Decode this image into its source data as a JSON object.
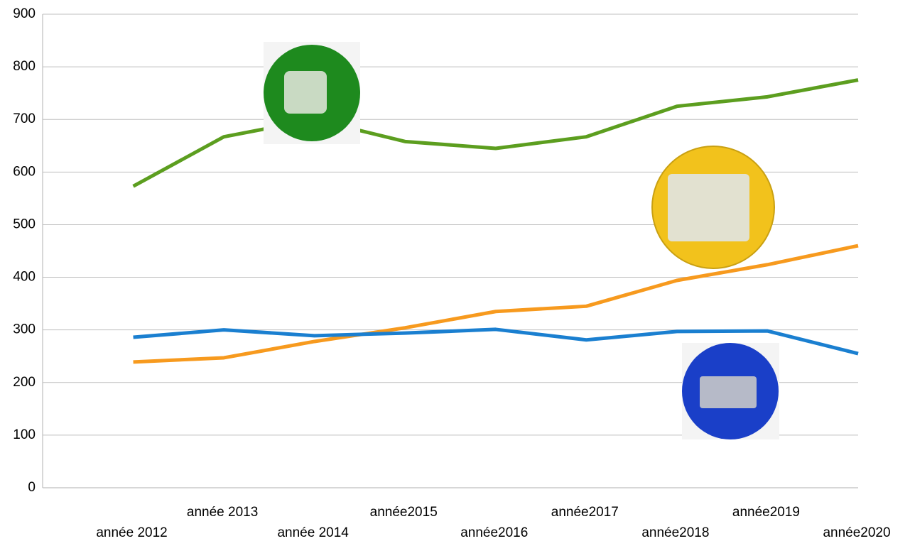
{
  "chart_data": {
    "type": "line",
    "categories": [
      "année 2012",
      "année 2013",
      "année 2014",
      "année2015",
      "année2016",
      "année2017",
      "année2018",
      "année2019",
      "année2020"
    ],
    "series": [
      {
        "color": "#5c9e1f",
        "values": [
          573,
          667,
          700,
          658,
          645,
          667,
          725,
          743,
          775
        ]
      },
      {
        "color": "#f79a1e",
        "values": [
          239,
          247,
          278,
          304,
          335,
          345,
          394,
          424,
          460
        ]
      },
      {
        "color": "#1a7fd0",
        "values": [
          286,
          300,
          289,
          294,
          301,
          281,
          297,
          298,
          255
        ]
      }
    ],
    "ylim": [
      0,
      900
    ],
    "yticks": [
      0,
      100,
      200,
      300,
      400,
      500,
      600,
      700,
      800,
      900
    ],
    "grid": true
  }
}
